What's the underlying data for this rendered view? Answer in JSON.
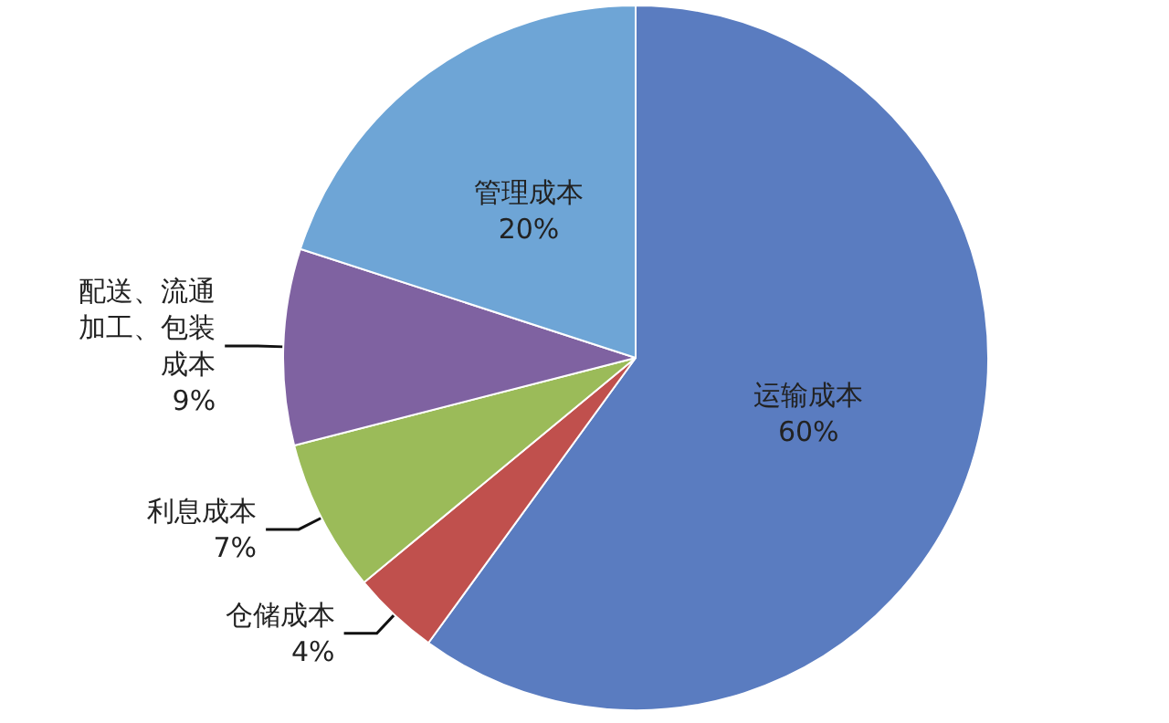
{
  "chart_data": {
    "type": "pie",
    "categories": [
      "运输成本",
      "仓储成本",
      "利息成本",
      "配送、流通加工、包装成本",
      "管理成本"
    ],
    "values": [
      60,
      4,
      7,
      9,
      20
    ],
    "value_labels": [
      "60%",
      "4%",
      "7%",
      "9%",
      "20%"
    ],
    "colors": [
      "#5a7cc0",
      "#c0504d",
      "#9bbb59",
      "#7f62a1",
      "#6ea5d6"
    ],
    "legend": false
  }
}
